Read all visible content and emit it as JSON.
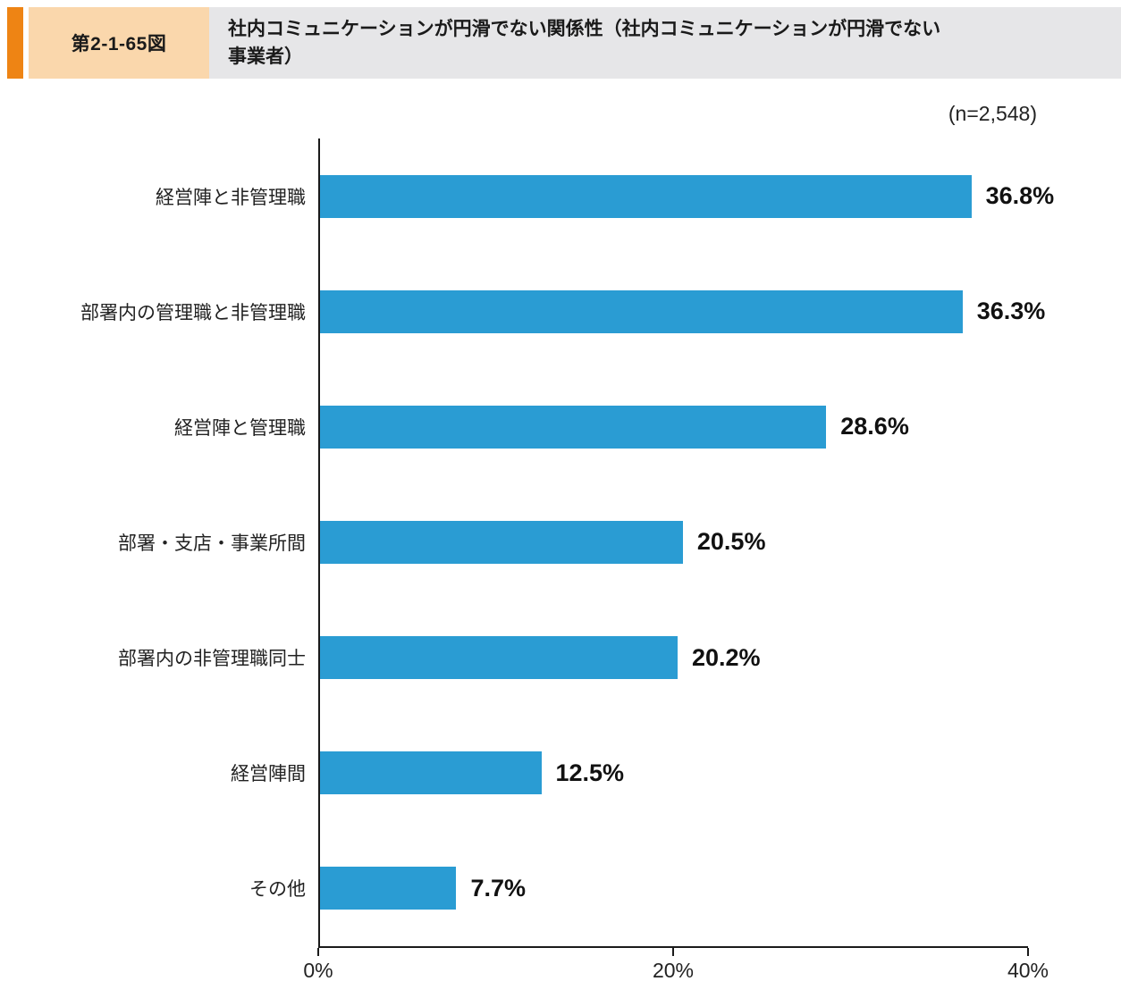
{
  "header": {
    "figure_number": "第2-1-65図",
    "title_line1": "社内コミュニケーションが円滑でない関係性（社内コミュニケーションが円滑でない",
    "title_line2": "事業者）",
    "accent_color": "#EE8414",
    "number_bg_color": "#FAD7AC",
    "title_bg_color": "#E6E6E8"
  },
  "sample_size_label": "(n=2,548)",
  "chart_data": {
    "type": "bar",
    "orientation": "horizontal",
    "title": "社内コミュニケーションが円滑でない関係性（社内コミュニケーションが円滑でない事業者）",
    "categories": [
      "経営陣と非管理職",
      "部署内の管理職と非管理職",
      "経営陣と管理職",
      "部署・支店・事業所間",
      "部署内の非管理職同士",
      "経営陣間",
      "その他"
    ],
    "values": [
      36.8,
      36.3,
      28.6,
      20.5,
      20.2,
      12.5,
      7.7
    ],
    "value_labels": [
      "36.8%",
      "36.3%",
      "28.6%",
      "20.5%",
      "20.2%",
      "12.5%",
      "7.7%"
    ],
    "xlim": [
      0,
      40
    ],
    "x_ticks": [
      {
        "value": 0,
        "label": "0%"
      },
      {
        "value": 20,
        "label": "20%"
      },
      {
        "value": 40,
        "label": "40%"
      }
    ],
    "bar_color": "#2A9CD3",
    "xlabel": "",
    "ylabel": "",
    "grid": false,
    "legend": false
  }
}
